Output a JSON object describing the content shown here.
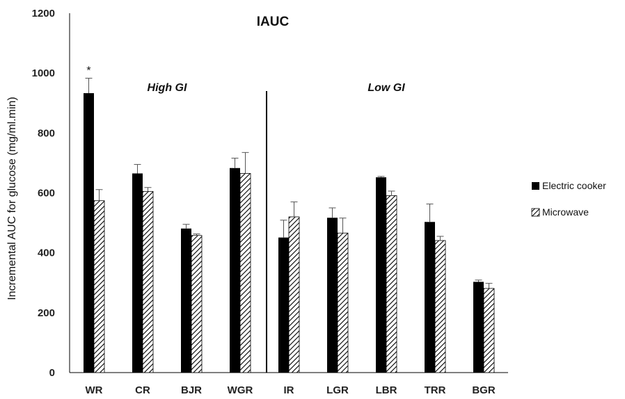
{
  "chart_data": {
    "type": "bar",
    "title": "IAUC",
    "ylabel": "Incremental AUC for glucose (mg/ml.min)",
    "xlabel": "",
    "ylim": [
      0,
      1200
    ],
    "yticks": [
      0,
      200,
      400,
      600,
      800,
      1000,
      1200
    ],
    "categories": [
      "WR",
      "CR",
      "BJR",
      "WGR",
      "IR",
      "LGR",
      "LBR",
      "TRR",
      "BGR"
    ],
    "series": [
      {
        "name": "Electric cooker",
        "color": "#000000",
        "pattern": "solid",
        "values": [
          933,
          665,
          481,
          683,
          451,
          517,
          652,
          503,
          303
        ],
        "errors": [
          50,
          30,
          14,
          33,
          58,
          33,
          3,
          60,
          6
        ]
      },
      {
        "name": "Microwave",
        "color": "#000000",
        "pattern": "diagonal-hatch",
        "values": [
          574,
          605,
          458,
          665,
          520,
          466,
          591,
          441,
          281
        ],
        "errors": [
          37,
          13,
          5,
          70,
          50,
          50,
          15,
          14,
          17
        ]
      }
    ],
    "group_labels": [
      {
        "text": "High GI",
        "categories": [
          "WR",
          "CR",
          "BJR",
          "WGR"
        ]
      },
      {
        "text": "Low GI",
        "categories": [
          "IR",
          "LGR",
          "LBR",
          "TRR",
          "BGR"
        ]
      }
    ],
    "divider_after_category": "WGR",
    "annotations": [
      {
        "text": "*",
        "category": "WR",
        "series": "Electric cooker"
      }
    ],
    "legend_position": "right",
    "grid": false
  }
}
